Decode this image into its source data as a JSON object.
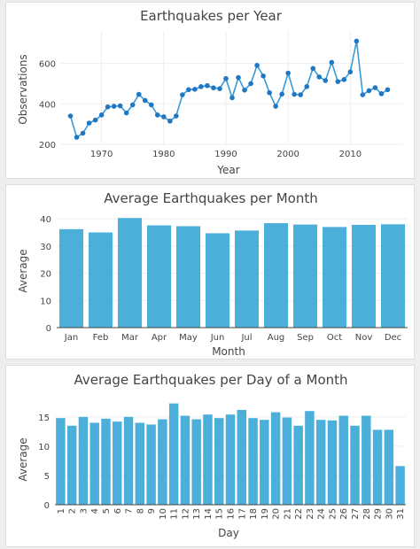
{
  "colors": {
    "bar": "#4cafd9",
    "line": "#3a9bd5",
    "point": "#1f77c4"
  },
  "chart_data": [
    {
      "type": "line",
      "title": "Earthquakes per Year",
      "xlabel": "Year",
      "ylabel": "Observations",
      "xlim": [
        1963.5,
        2018.5
      ],
      "ylim": [
        200,
        760
      ],
      "xticks": [
        "1970",
        "1980",
        "1990",
        "2000",
        "2010"
      ],
      "yticks": [
        "200",
        "400",
        "600"
      ],
      "x": [
        1965,
        1966,
        1967,
        1968,
        1969,
        1970,
        1971,
        1972,
        1973,
        1974,
        1975,
        1976,
        1977,
        1978,
        1979,
        1980,
        1981,
        1982,
        1983,
        1984,
        1985,
        1986,
        1987,
        1988,
        1989,
        1990,
        1991,
        1992,
        1993,
        1994,
        1995,
        1996,
        1997,
        1998,
        1999,
        2000,
        2001,
        2002,
        2003,
        2004,
        2005,
        2006,
        2007,
        2008,
        2009,
        2010,
        2011,
        2012,
        2013,
        2014,
        2015,
        2016
      ],
      "y": [
        340,
        235,
        255,
        305,
        320,
        345,
        385,
        388,
        390,
        355,
        395,
        447,
        417,
        395,
        345,
        336,
        315,
        340,
        445,
        470,
        472,
        485,
        490,
        479,
        475,
        525,
        430,
        530,
        468,
        500,
        590,
        538,
        455,
        388,
        448,
        552,
        447,
        445,
        485,
        575,
        533,
        515,
        605,
        510,
        520,
        558,
        710,
        445,
        465,
        480,
        450,
        470
      ]
    },
    {
      "type": "bar",
      "title": "Average Earthquakes per Month",
      "xlabel": "Month",
      "ylabel": "Average",
      "ylim": [
        0,
        42
      ],
      "yticks": [
        "0",
        "10",
        "20",
        "30",
        "40"
      ],
      "categories": [
        "Jan",
        "Feb",
        "Mar",
        "Apr",
        "May",
        "Jun",
        "Jul",
        "Aug",
        "Sep",
        "Oct",
        "Nov",
        "Dec"
      ],
      "values": [
        36.2,
        35.0,
        40.3,
        37.6,
        37.3,
        34.7,
        35.7,
        38.4,
        37.9,
        37.0,
        37.8,
        38.0
      ]
    },
    {
      "type": "bar",
      "title": "Average Earthquakes per Day of a Month",
      "xlabel": "Day",
      "ylabel": "Average",
      "ylim": [
        0,
        18
      ],
      "yticks": [
        "0",
        "5",
        "10",
        "15"
      ],
      "categories": [
        "1",
        "2",
        "3",
        "4",
        "5",
        "6",
        "7",
        "8",
        "9",
        "10",
        "11",
        "12",
        "13",
        "14",
        "15",
        "16",
        "17",
        "18",
        "19",
        "20",
        "21",
        "22",
        "23",
        "24",
        "25",
        "26",
        "27",
        "28",
        "29",
        "30",
        "31"
      ],
      "values": [
        14.8,
        13.5,
        15.0,
        14.0,
        14.7,
        14.2,
        15.0,
        14.0,
        13.7,
        14.6,
        17.3,
        15.2,
        14.6,
        15.4,
        14.8,
        15.4,
        16.2,
        14.8,
        14.5,
        15.8,
        14.9,
        13.5,
        16.0,
        14.5,
        14.4,
        15.2,
        13.5,
        15.2,
        12.8,
        12.8,
        6.6
      ]
    }
  ]
}
